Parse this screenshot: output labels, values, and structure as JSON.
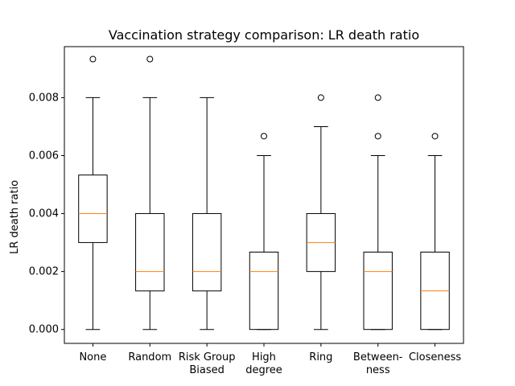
{
  "chart_data": {
    "type": "boxplot",
    "title": "Vaccination strategy comparison: LR death ratio",
    "xlabel": "",
    "ylabel": "LR death ratio",
    "ylim": [
      -0.00048,
      0.00976
    ],
    "yticks": [
      0.0,
      0.002,
      0.004,
      0.006,
      0.008
    ],
    "ytick_labels": [
      "0.000",
      "0.002",
      "0.004",
      "0.006",
      "0.008"
    ],
    "grid": false,
    "colors": {
      "box": "#000000",
      "median": "#ff7f0e",
      "axes": "#000000"
    },
    "categories": [
      [
        "None"
      ],
      [
        "Random"
      ],
      [
        "Risk Group",
        "Biased"
      ],
      [
        "High",
        "degree"
      ],
      [
        "Ring"
      ],
      [
        "Between-",
        "ness"
      ],
      [
        "Closeness"
      ]
    ],
    "boxes": [
      {
        "whislo": 0.0,
        "q1": 0.003,
        "med": 0.004,
        "q3": 0.00533,
        "whishi": 0.008,
        "fliers": [
          0.00933
        ]
      },
      {
        "whislo": 0.0,
        "q1": 0.00133,
        "med": 0.002,
        "q3": 0.004,
        "whishi": 0.008,
        "fliers": [
          0.00933
        ]
      },
      {
        "whislo": 0.0,
        "q1": 0.00133,
        "med": 0.002,
        "q3": 0.004,
        "whishi": 0.008,
        "fliers": []
      },
      {
        "whislo": 0.0,
        "q1": 0.0,
        "med": 0.002,
        "q3": 0.00267,
        "whishi": 0.006,
        "fliers": [
          0.00667
        ]
      },
      {
        "whislo": 0.0,
        "q1": 0.002,
        "med": 0.003,
        "q3": 0.004,
        "whishi": 0.007,
        "fliers": [
          0.008
        ]
      },
      {
        "whislo": 0.0,
        "q1": 0.0,
        "med": 0.002,
        "q3": 0.00267,
        "whishi": 0.006,
        "fliers": [
          0.00667,
          0.008
        ]
      },
      {
        "whislo": 0.0,
        "q1": 0.0,
        "med": 0.00133,
        "q3": 0.00267,
        "whishi": 0.006,
        "fliers": [
          0.00667
        ]
      }
    ]
  }
}
